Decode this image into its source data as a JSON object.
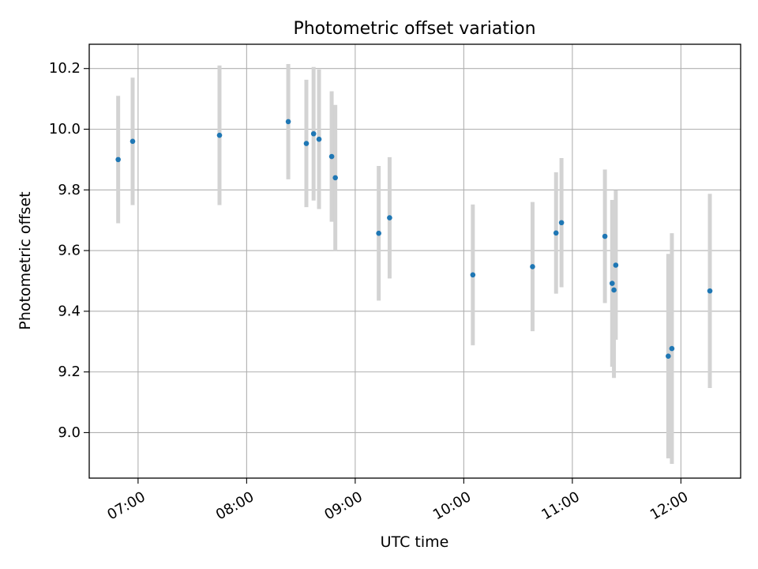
{
  "chart_data": {
    "type": "scatter",
    "title": "Photometric offset variation",
    "xlabel": "UTC time",
    "ylabel": "Photometric offset",
    "grid": true,
    "xlim": [
      "06:33",
      "12:33"
    ],
    "ylim": [
      8.85,
      10.28
    ],
    "x_ticks": [
      "07:00",
      "08:00",
      "09:00",
      "10:00",
      "11:00",
      "12:00"
    ],
    "y_ticks": [
      9.0,
      9.2,
      9.4,
      9.6,
      9.8,
      10.0,
      10.2
    ],
    "y_tick_labels": [
      "9.0",
      "9.2",
      "9.4",
      "9.6",
      "9.8",
      "10.0",
      "10.2"
    ],
    "marker_color": "#1f77b4",
    "errorbar_color": "#d3d3d3",
    "points": [
      {
        "x": "06:49",
        "y": 9.9,
        "yerr": 0.21
      },
      {
        "x": "06:57",
        "y": 9.96,
        "yerr": 0.21
      },
      {
        "x": "07:45",
        "y": 9.98,
        "yerr": 0.23
      },
      {
        "x": "08:23",
        "y": 10.025,
        "yerr": 0.19
      },
      {
        "x": "08:33",
        "y": 9.953,
        "yerr": 0.21
      },
      {
        "x": "08:37",
        "y": 9.985,
        "yerr": 0.22
      },
      {
        "x": "08:40",
        "y": 9.967,
        "yerr": 0.23
      },
      {
        "x": "08:47",
        "y": 9.91,
        "yerr": 0.215
      },
      {
        "x": "08:49",
        "y": 9.84,
        "yerr": 0.24
      },
      {
        "x": "09:13",
        "y": 9.657,
        "yerr": 0.222
      },
      {
        "x": "09:19",
        "y": 9.708,
        "yerr": 0.2
      },
      {
        "x": "10:05",
        "y": 9.52,
        "yerr": 0.232
      },
      {
        "x": "10:38",
        "y": 9.547,
        "yerr": 0.213
      },
      {
        "x": "10:51",
        "y": 9.658,
        "yerr": 0.2
      },
      {
        "x": "10:54",
        "y": 9.692,
        "yerr": 0.213
      },
      {
        "x": "11:18",
        "y": 9.647,
        "yerr": 0.22
      },
      {
        "x": "11:22",
        "y": 9.492,
        "yerr": 0.275
      },
      {
        "x": "11:23",
        "y": 9.47,
        "yerr": 0.29
      },
      {
        "x": "11:24",
        "y": 9.552,
        "yerr": 0.246
      },
      {
        "x": "11:53",
        "y": 9.252,
        "yerr": 0.337
      },
      {
        "x": "11:55",
        "y": 9.277,
        "yerr": 0.38
      },
      {
        "x": "12:16",
        "y": 9.467,
        "yerr": 0.32
      }
    ]
  }
}
